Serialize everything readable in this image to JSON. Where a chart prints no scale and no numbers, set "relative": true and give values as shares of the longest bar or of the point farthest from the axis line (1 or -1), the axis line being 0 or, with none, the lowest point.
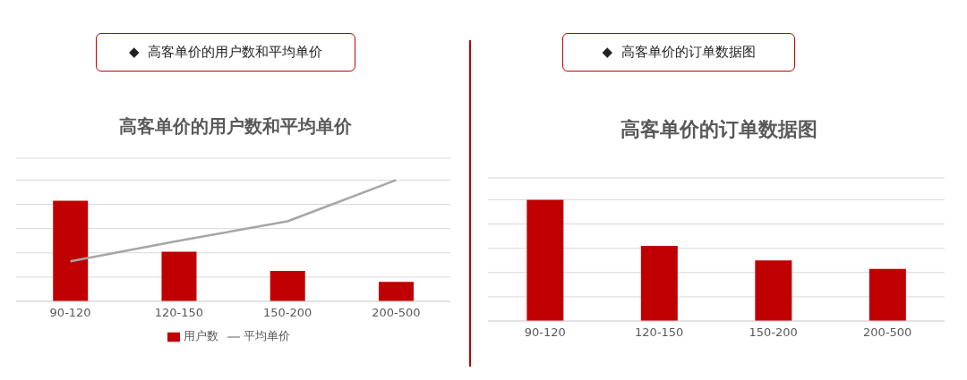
{
  "chart_data": [
    {
      "type": "bar",
      "title": "高客单价的用户数和平均单价",
      "annotations": [
        "◆  高客单价的用户数和平均单价"
      ],
      "categories": [
        "90-120",
        "120-150",
        "150-200",
        "200-500"
      ],
      "relative": true,
      "grid": "y",
      "legend": "bottom",
      "series": [
        {
          "name": "用户数",
          "color": "#c00000",
          "values": [
            0.83,
            0.41,
            0.25,
            0.16
          ]
        },
        {
          "name": "平均单价",
          "type": "line",
          "color": "#a6a6a6",
          "marker": "none",
          "values": [
            0.33,
            0.5,
            0.66,
            1
          ]
        }
      ]
    },
    {
      "type": "bar",
      "title": "高客单价的订单数据图",
      "annotations": [
        "◆  高客单价的订单数据图"
      ],
      "categories": [
        "90-120",
        "120-150",
        "150-200",
        "200-500"
      ],
      "relative": true,
      "grid": "y",
      "legend": false,
      "series": [
        {
          "color": "#c00000",
          "values": [
            1,
            0.62,
            0.5,
            0.43
          ]
        }
      ]
    }
  ]
}
